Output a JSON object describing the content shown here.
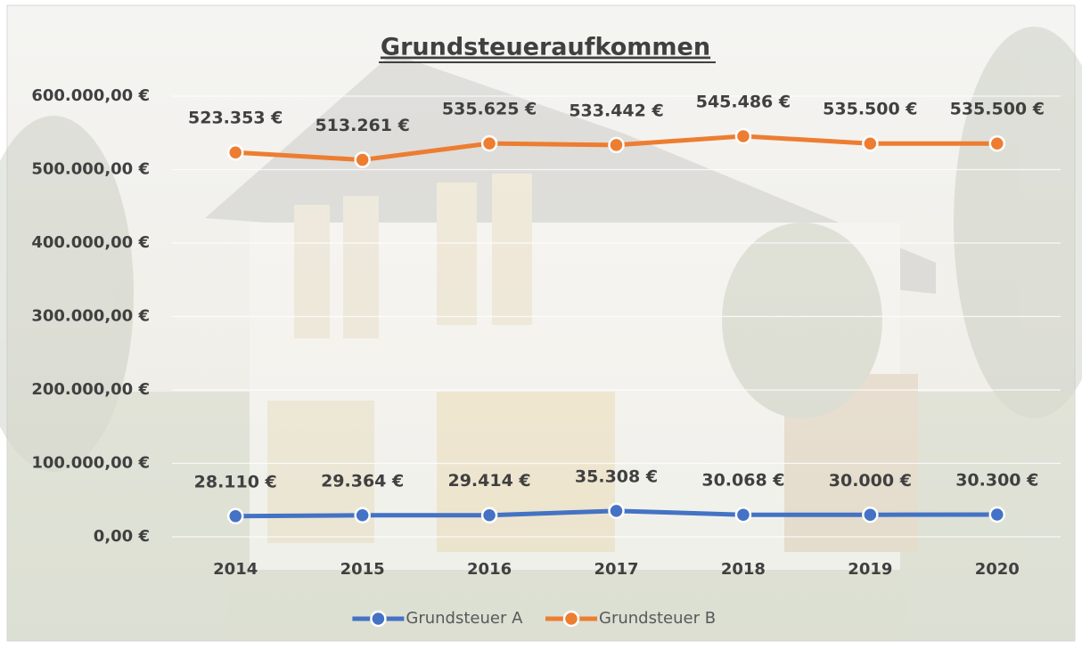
{
  "chart_data": {
    "type": "line",
    "title": "Grundsteueraufkommen",
    "categories": [
      "2014",
      "2015",
      "2016",
      "2017",
      "2018",
      "2019",
      "2020"
    ],
    "series": [
      {
        "name": "Grundsteuer A",
        "color": "#4472c4",
        "values": [
          28110,
          29364,
          29414,
          35308,
          30068,
          30000,
          30300
        ],
        "value_labels": [
          "28.110 €",
          "29.364 €",
          "29.414 €",
          "35.308 €",
          "30.068 €",
          "30.000 €",
          "30.300 €"
        ]
      },
      {
        "name": "Grundsteuer B",
        "color": "#ed7d31",
        "values": [
          523353,
          513261,
          535625,
          533442,
          545486,
          535500,
          535500
        ],
        "value_labels": [
          "523.353 €",
          "513.261 €",
          "535.625 €",
          "533.442 €",
          "545.486 €",
          "535.500 €",
          "535.500 €"
        ]
      }
    ],
    "ylim": [
      0,
      600000
    ],
    "yticks": [
      {
        "value": 0,
        "label": "0,00 €"
      },
      {
        "value": 100000,
        "label": "100.000,00 €"
      },
      {
        "value": 200000,
        "label": "200.000,00 €"
      },
      {
        "value": 300000,
        "label": "300.000,00 €"
      },
      {
        "value": 400000,
        "label": "400.000,00 €"
      },
      {
        "value": 500000,
        "label": "500.000,00 €"
      },
      {
        "value": 600000,
        "label": "600.000,00 €"
      }
    ],
    "grid": true,
    "legend": "bottom"
  }
}
